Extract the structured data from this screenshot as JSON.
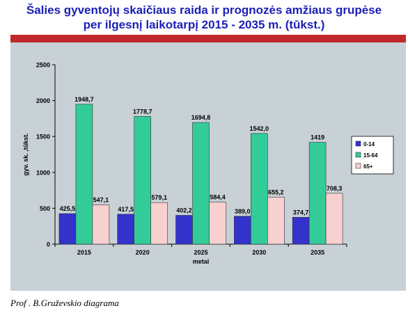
{
  "title_line1": "Šalies gyventojų skaičiaus raida ir prognozės amžiaus grupėse",
  "title_line2": "per ilgesnį laikotarpį 2015 - 2035 m. (tūkst.)",
  "caption": "Prof . B.Gruževskio diagrama",
  "colors": {
    "series_0_14": "#3333cc",
    "series_15_64": "#33cc99",
    "series_65_plus": "#f8d0d0",
    "band": "#c0282c",
    "plot_bg": "#c8d1d6",
    "title": "#1a1fb5"
  },
  "chart_data": {
    "type": "bar",
    "title": "Šalies gyventojų skaičiaus raida ir prognozės amžiaus grupėse per ilgesnį laikotarpį 2015 - 2035 m. (tūkst.)",
    "xlabel": "metai",
    "ylabel": "gyv. sk. ,tūkst.",
    "categories": [
      "2015",
      "2020",
      "2025",
      "2030",
      "2035"
    ],
    "ylim": [
      0,
      2500
    ],
    "yticks": [
      0,
      500,
      1000,
      1500,
      2000,
      2500
    ],
    "legend_position": "right",
    "grid": false,
    "series": [
      {
        "name": "0-14",
        "values": [
          425.5,
          417.5,
          402.2,
          389.0,
          374.7
        ],
        "labels": [
          "425,5",
          "417,5",
          "402,2",
          "389,0",
          "374,7"
        ]
      },
      {
        "name": "15-64",
        "values": [
          1948.7,
          1778.7,
          1694.8,
          1542.0,
          1419
        ],
        "labels": [
          "1948,7",
          "1778,7",
          "1694,8",
          "1542,0",
          "1419"
        ]
      },
      {
        "name": "65+",
        "values": [
          547.1,
          579.1,
          584.4,
          655.2,
          708.3
        ],
        "labels": [
          "547,1",
          "579,1",
          "584,4",
          "655,2",
          "708,3"
        ]
      }
    ]
  }
}
